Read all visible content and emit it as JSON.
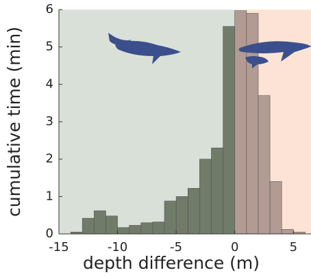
{
  "chart_data": {
    "type": "histogram",
    "xlabel": "depth difference (m)",
    "ylabel": "cumulative time (min)",
    "xlim": [
      -15,
      6.5
    ],
    "ylim": [
      0,
      6
    ],
    "xticks": [
      -15,
      -10,
      -5,
      0,
      5
    ],
    "yticks": [
      0,
      1,
      2,
      3,
      4,
      5,
      6
    ],
    "series": [
      {
        "color": "#6b7563",
        "background": "#d9e0d7",
        "bins": [
          -14,
          -13,
          -12,
          -11,
          -10,
          -9,
          -8,
          -7,
          -6,
          -5,
          -4,
          -3,
          -2,
          -1,
          0
        ],
        "values": [
          0.05,
          0.42,
          0.62,
          0.48,
          0.17,
          0.23,
          0.3,
          0.32,
          0.88,
          1.0,
          1.22,
          2.0,
          2.3,
          5.55
        ]
      },
      {
        "color": "#ae978f",
        "background": "#fde3d5",
        "bins": [
          0,
          1,
          2,
          3,
          4,
          5,
          6
        ],
        "values": [
          5.97,
          5.9,
          3.7,
          1.4,
          0.12,
          0.05
        ]
      }
    ]
  }
}
